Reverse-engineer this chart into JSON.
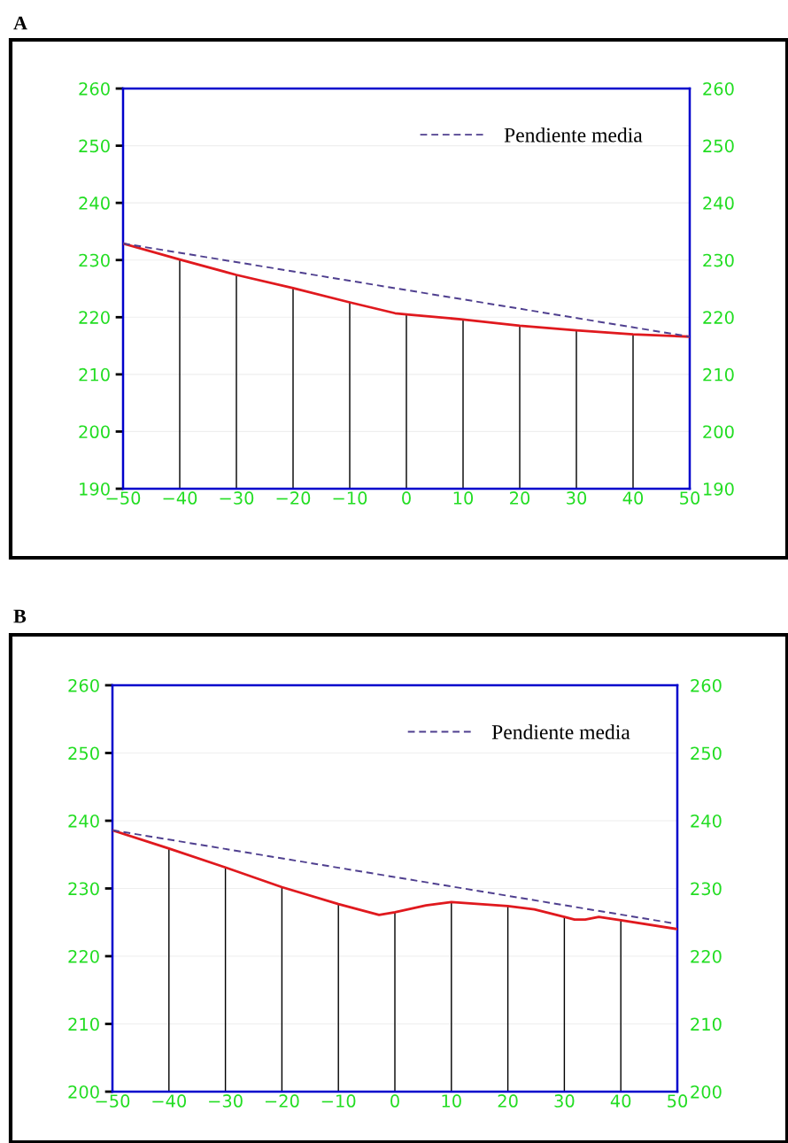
{
  "chart_data": [
    {
      "type": "line",
      "title": "A",
      "legend": "top right",
      "grid": "y",
      "marker": "none",
      "xlim": [
        -50,
        50
      ],
      "xticks": [
        -50,
        -40,
        -30,
        -20,
        -10,
        0,
        10,
        20,
        30,
        40,
        50
      ],
      "ylim": [
        190,
        260
      ],
      "yticks": [
        190,
        200,
        210,
        220,
        230,
        240,
        250,
        260
      ],
      "y2lim": [
        190,
        260
      ],
      "y2ticks": [
        190,
        200,
        210,
        220,
        230,
        240,
        250,
        260
      ],
      "series": [
        {
          "color": "#e0191e",
          "line_style": "solid",
          "x": [
            -50,
            -40,
            -30,
            -20,
            -10,
            -2,
            0,
            10,
            20,
            30,
            40,
            50
          ],
          "values": [
            232.9,
            230.1,
            227.4,
            225.1,
            222.6,
            220.7,
            220.5,
            219.6,
            218.5,
            217.7,
            217.0,
            216.6
          ]
        },
        {
          "type": "line",
          "name": "Pendiente media",
          "color": "#4f3f8f",
          "line_style": "dashed",
          "x": [
            -50,
            50
          ],
          "values": [
            232.9,
            216.6
          ]
        },
        {
          "type": "bar",
          "color": "#000000",
          "x": [
            -40,
            -30,
            -20,
            -10,
            0,
            10,
            20,
            30,
            40
          ],
          "values": [
            230.1,
            227.4,
            225.1,
            222.6,
            220.5,
            219.6,
            218.5,
            217.7,
            217.0
          ]
        }
      ]
    },
    {
      "type": "line",
      "title": "B",
      "legend": "top right",
      "grid": "y",
      "marker": "none",
      "xlim": [
        -50,
        50
      ],
      "xticks": [
        -50,
        -40,
        -30,
        -20,
        -10,
        0,
        10,
        20,
        30,
        40,
        50
      ],
      "ylim": [
        200,
        260
      ],
      "yticks": [
        200,
        210,
        220,
        230,
        240,
        250,
        260
      ],
      "y2lim": [
        200,
        260
      ],
      "y2ticks": [
        200,
        210,
        220,
        230,
        240,
        250,
        260
      ],
      "series": [
        {
          "color": "#e0191e",
          "line_style": "solid",
          "x": [
            -50,
            -40,
            -30,
            -20,
            -10,
            -2.8,
            0,
            5.5,
            10,
            20,
            24.7,
            30,
            31.8,
            33.7,
            36.1,
            40,
            50
          ],
          "values": [
            238.6,
            235.9,
            233.1,
            230.2,
            227.7,
            226.1,
            226.5,
            227.5,
            228.0,
            227.4,
            226.9,
            225.8,
            225.4,
            225.4,
            225.8,
            225.3,
            224.0
          ]
        },
        {
          "type": "line",
          "name": "Pendiente media",
          "color": "#4f3f8f",
          "line_style": "dashed",
          "x": [
            -50,
            49
          ],
          "values": [
            238.6,
            224.9
          ]
        },
        {
          "type": "bar",
          "color": "#000000",
          "x": [
            -40,
            -30,
            -20,
            -10,
            0,
            10,
            20,
            30,
            40
          ],
          "values": [
            235.9,
            233.1,
            230.2,
            227.7,
            226.5,
            228.0,
            227.4,
            225.8,
            225.3
          ]
        }
      ]
    }
  ]
}
